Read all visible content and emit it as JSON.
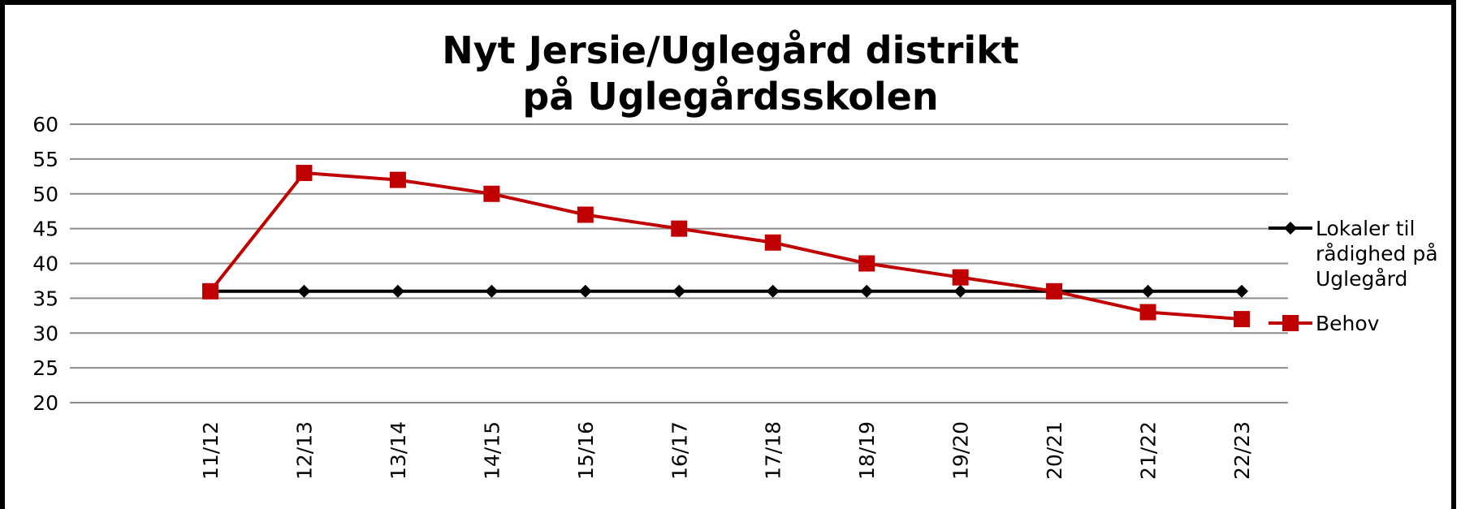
{
  "chart_data": {
    "type": "line",
    "title": "Nyt Jersie/Uglegård  distrikt\npå Uglegårdsskolen",
    "categories": [
      "11/12",
      "12/13",
      "13/14",
      "14/15",
      "15/16",
      "16/17",
      "17/18",
      "18/19",
      "19/20",
      "20/21",
      "21/22",
      "22/23"
    ],
    "series": [
      {
        "name": "Lokaler til rådighed på Uglegård",
        "color": "#000000",
        "marker": "diamond",
        "values": [
          36,
          36,
          36,
          36,
          36,
          36,
          36,
          36,
          36,
          36,
          36,
          36
        ]
      },
      {
        "name": "Behov",
        "color": "#c00000",
        "marker": "square",
        "values": [
          36,
          53,
          52,
          50,
          47,
          45,
          43,
          40,
          38,
          36,
          33,
          32
        ]
      }
    ],
    "ylim": [
      20,
      60
    ],
    "yticks": [
      20,
      25,
      30,
      35,
      40,
      45,
      50,
      55,
      60
    ],
    "grid": true,
    "legend": "right"
  }
}
